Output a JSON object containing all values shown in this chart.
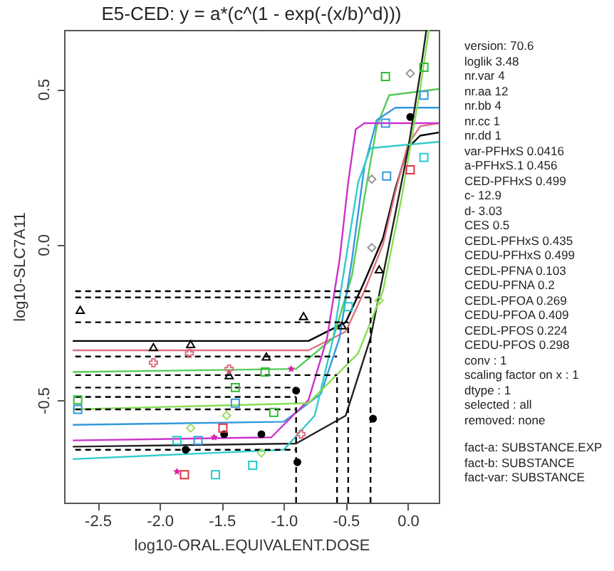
{
  "chart_data": {
    "type": "scatter",
    "title": "E5-CED: y = a*(c^(1 - exp(-(x/b)^d)))",
    "xlabel": "log10-ORAL.EQUIVALENT.DOSE",
    "ylabel": "log10-SLC7A11",
    "xlim": [
      -2.77,
      0.25
    ],
    "ylim": [
      -0.83,
      0.69
    ],
    "xticks": [
      -2.5,
      {
        "value": -2,
        "label": "-2.0"
      },
      -1.5,
      {
        "value": -1,
        "label": "-1.0"
      },
      -0.5,
      {
        "value": 0,
        "label": "0.0"
      }
    ],
    "yticks": [
      -0.5,
      {
        "value": 0,
        "label": "0.0"
      },
      0.5
    ],
    "grid": false,
    "series": [
      {
        "type": "line",
        "color": "#000000",
        "line_style": "solid",
        "x": [
          -2.7,
          -0.8,
          -0.5,
          -0.35,
          -0.2,
          -0.1,
          0,
          0.1,
          0.25
        ],
        "values": [
          -0.31,
          -0.31,
          -0.25,
          -0.12,
          0.02,
          0.18,
          0.31,
          0.35,
          0.36
        ]
      },
      {
        "type": "line",
        "color": "#e07080",
        "line_style": "solid",
        "x": [
          -2.7,
          -0.8,
          -0.5,
          -0.35,
          -0.2,
          -0.1,
          0,
          0.1,
          0.25
        ],
        "values": [
          -0.34,
          -0.34,
          -0.28,
          -0.15,
          0.0,
          0.17,
          0.32,
          0.38,
          0.39
        ]
      },
      {
        "type": "line",
        "color": "#55cc55",
        "line_style": "solid",
        "x": [
          -2.7,
          -0.9,
          -0.6,
          -0.45,
          -0.35,
          -0.25,
          -0.15,
          0.25
        ],
        "values": [
          -0.41,
          -0.4,
          -0.3,
          -0.1,
          0.15,
          0.38,
          0.48,
          0.5
        ]
      },
      {
        "type": "line",
        "color": "#3399dd",
        "line_style": "solid",
        "x": [
          -2.7,
          -1.0,
          -0.7,
          -0.55,
          -0.45,
          -0.35,
          -0.25,
          -0.1,
          0.25
        ],
        "values": [
          -0.58,
          -0.57,
          -0.48,
          -0.3,
          -0.05,
          0.25,
          0.4,
          0.44,
          0.44
        ]
      },
      {
        "type": "line",
        "color": "#cc33cc",
        "line_style": "solid",
        "x": [
          -2.7,
          -1.1,
          -0.8,
          -0.65,
          -0.55,
          -0.48,
          -0.42,
          -0.35,
          0.25
        ],
        "values": [
          -0.63,
          -0.62,
          -0.5,
          -0.3,
          -0.05,
          0.2,
          0.37,
          0.39,
          0.39
        ]
      },
      {
        "type": "line",
        "color": "#222222",
        "line_style": "solid",
        "x": [
          -2.7,
          -0.9,
          -0.5,
          -0.3,
          -0.15,
          0,
          0.1,
          0.15
        ],
        "values": [
          -0.65,
          -0.64,
          -0.55,
          -0.3,
          0.0,
          0.3,
          0.55,
          0.69
        ]
      },
      {
        "type": "line",
        "color": "#33cccc",
        "line_style": "solid",
        "x": [
          -2.7,
          -1.0,
          -0.75,
          -0.6,
          -0.5,
          -0.4,
          -0.3,
          0.25
        ],
        "values": [
          -0.69,
          -0.66,
          -0.55,
          -0.3,
          -0.05,
          0.2,
          0.31,
          0.33
        ]
      },
      {
        "type": "line",
        "color": "#88dd55",
        "line_style": "solid",
        "x": [
          -2.7,
          -0.8,
          -0.4,
          -0.2,
          -0.05,
          0.1,
          0.17
        ],
        "values": [
          -0.53,
          -0.51,
          -0.35,
          -0.15,
          0.15,
          0.5,
          0.69
        ]
      },
      {
        "type": "line",
        "color": "#000000",
        "line_style": "dashed",
        "x": [
          -2.68,
          -0.3
        ],
        "values": [
          -0.15,
          -0.15
        ]
      },
      {
        "type": "line",
        "color": "#000000",
        "line_style": "dashed",
        "x": [
          -2.68,
          -0.3
        ],
        "values": [
          -0.17,
          -0.17
        ]
      },
      {
        "type": "line",
        "color": "#000000",
        "line_style": "dashed",
        "x": [
          -2.68,
          -0.48
        ],
        "values": [
          -0.25,
          -0.25
        ]
      },
      {
        "type": "line",
        "color": "#000000",
        "line_style": "dashed",
        "x": [
          -2.68,
          -0.57
        ],
        "values": [
          -0.36,
          -0.36
        ]
      },
      {
        "type": "line",
        "color": "#000000",
        "line_style": "dashed",
        "x": [
          -2.68,
          -0.57
        ],
        "values": [
          -0.42,
          -0.42
        ]
      },
      {
        "type": "line",
        "color": "#000000",
        "line_style": "dashed",
        "x": [
          -2.68,
          -0.9
        ],
        "values": [
          -0.46,
          -0.46
        ]
      },
      {
        "type": "line",
        "color": "#000000",
        "line_style": "dashed",
        "x": [
          -2.68,
          -0.9
        ],
        "values": [
          -0.49,
          -0.49
        ]
      },
      {
        "type": "line",
        "color": "#000000",
        "line_style": "dashed",
        "x": [
          -2.68,
          -0.9
        ],
        "values": [
          -0.53,
          -0.53
        ]
      },
      {
        "type": "line",
        "color": "#000000",
        "line_style": "dashed",
        "x": [
          -2.68,
          -0.9
        ],
        "values": [
          -0.66,
          -0.66
        ]
      },
      {
        "type": "line",
        "color": "#000000",
        "line_style": "dashed",
        "x": [
          -0.3,
          -0.3
        ],
        "values": [
          -0.83,
          -0.17
        ]
      },
      {
        "type": "line",
        "color": "#000000",
        "line_style": "dashed",
        "x": [
          -0.48,
          -0.48
        ],
        "values": [
          -0.83,
          -0.25
        ]
      },
      {
        "type": "line",
        "color": "#000000",
        "line_style": "dashed",
        "x": [
          -0.57,
          -0.57
        ],
        "values": [
          -0.83,
          -0.42
        ]
      },
      {
        "type": "line",
        "color": "#000000",
        "line_style": "dashed",
        "x": [
          -0.9,
          -0.9
        ],
        "values": [
          -0.83,
          -0.46
        ]
      },
      {
        "color": "#000000",
        "marker": "triangle",
        "x": [
          -2.64,
          -2.05,
          -1.75,
          -1.14,
          -1.44,
          -0.84,
          -0.53,
          -0.23
        ],
        "values": [
          -0.21,
          -0.33,
          -0.32,
          -0.36,
          -0.42,
          -0.23,
          -0.26,
          -0.08
        ]
      },
      {
        "color": "#e07080",
        "marker": "cross",
        "x": [
          -2.05,
          -1.76,
          -1.44,
          -0.86
        ],
        "values": [
          -0.38,
          -0.35,
          -0.4,
          -0.61
        ]
      },
      {
        "color": "#33bb33",
        "marker": "square",
        "x": [
          -2.66,
          -1.39,
          -1.15,
          -1.08,
          -0.18,
          0.13
        ],
        "values": [
          -0.5,
          -0.46,
          -0.41,
          -0.54,
          0.54,
          0.57
        ]
      },
      {
        "color": "#3399dd",
        "marker": "square",
        "x": [
          -2.66,
          -1.39,
          -1.69,
          -0.18,
          0.13,
          -0.17
        ],
        "values": [
          -0.53,
          -0.51,
          -0.63,
          0.39,
          0.48,
          0.22
        ]
      },
      {
        "color": "#22cccc",
        "marker": "square",
        "x": [
          -1.55,
          -1.25,
          -1.86,
          0.13,
          -0.48
        ],
        "values": [
          -0.74,
          -0.71,
          -0.63,
          0.28,
          -0.2
        ]
      },
      {
        "color": "#dd22aa",
        "marker": "star",
        "x": [
          -1.86,
          -1.56,
          -0.94
        ],
        "values": [
          -0.73,
          -0.62,
          -0.4
        ]
      },
      {
        "color": "#000000",
        "marker": "circle",
        "x": [
          -1.79,
          -1.48,
          -1.18,
          -0.89,
          -0.9,
          -0.28,
          0.02
        ],
        "values": [
          -0.66,
          -0.61,
          -0.61,
          -0.7,
          -0.47,
          -0.56,
          0.41
        ]
      },
      {
        "color": "#99dd66",
        "marker": "diamond",
        "x": [
          -1.75,
          -1.46,
          -1.18,
          -0.23
        ],
        "values": [
          -0.59,
          -0.55,
          -0.67,
          -0.18
        ]
      },
      {
        "color": "#dd3344",
        "marker": "square",
        "x": [
          -1.8,
          -1.49,
          0.02
        ],
        "values": [
          -0.74,
          -0.59,
          0.24
        ]
      },
      {
        "color": "#999999",
        "marker": "diamond",
        "x": [
          0.02,
          -0.29,
          -0.29
        ],
        "values": [
          0.55,
          0.21,
          -0.01
        ]
      }
    ],
    "annotations": [
      "version: 70.6",
      "loglik 3.48",
      "nr.var 4",
      "nr.aa 12",
      "nr.bb 4",
      "nr.cc 1",
      "nr.dd 1",
      "var-PFHxS 0.0416",
      "a-PFHxS.1 0.456",
      "CED-PFHxS 0.499",
      "c- 12.9",
      "d- 3.03",
      "CES 0.5",
      "CEDL-PFHxS 0.435",
      "CEDU-PFHxS 0.499",
      "CEDL-PFNA 0.103",
      "CEDU-PFNA 0.2",
      "CEDL-PFOA 0.269",
      "CEDU-PFOA 0.409",
      "CEDL-PFOS 0.224",
      "CEDU-PFOS 0.298",
      "conv : 1",
      "scaling factor on x : 1",
      "dtype : 1",
      "selected : all",
      "removed: none",
      "fact-a: SUBSTANCE.EXP",
      "fact-b: SUBSTANCE",
      "fact-var: SUBSTANCE"
    ]
  }
}
